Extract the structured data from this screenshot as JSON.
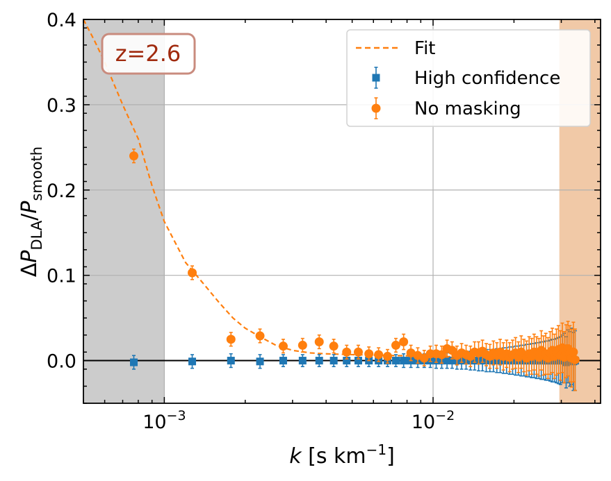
{
  "chart_data": {
    "type": "scatter",
    "xscale": "log",
    "xlim": [
      0.0005,
      0.042
    ],
    "ylim": [
      -0.05,
      0.4
    ],
    "xlabel": {
      "italic": "k",
      "rest": " [s km",
      "sup": "−1",
      "close": "]"
    },
    "ylabel": {
      "delta": "Δ",
      "p1": "P",
      "sub1": "DLA",
      "slash": "/",
      "p2": "P",
      "sub2": "smooth"
    },
    "y_ticks": [
      0.0,
      0.1,
      0.2,
      0.3,
      0.4
    ],
    "y_tick_labels": [
      "0.0",
      "0.1",
      "0.2",
      "0.3",
      "0.4"
    ],
    "x_major_ticks": [
      0.001,
      0.01
    ],
    "x_tick_labels": [
      {
        "base": "10",
        "exp": "−3"
      },
      {
        "base": "10",
        "exp": "−2"
      }
    ],
    "grid": true,
    "annotation": {
      "text": "z=2.6",
      "color": "#a02a0e",
      "border": "#c98b7e",
      "position": "top-left"
    },
    "shaded_regions": [
      {
        "x0": 0.0005,
        "x1": 0.001,
        "color": "#cccccc"
      },
      {
        "x0": 0.0295,
        "x1": 0.042,
        "color": "#f1c9a7"
      }
    ],
    "legend": {
      "position": "top-right",
      "entries": [
        {
          "label": "Fit",
          "kind": "line",
          "color": "#ff7f0e"
        },
        {
          "label": "High confidence",
          "kind": "square",
          "color": "#1f77b4"
        },
        {
          "label": "No masking",
          "kind": "circle",
          "color": "#ff7f0e"
        }
      ]
    },
    "series": [
      {
        "name": "Fit",
        "kind": "dashed-line",
        "color": "#ff7f0e",
        "x": [
          0.0005,
          0.00055,
          0.0006,
          0.0007,
          0.0008,
          0.0009,
          0.001,
          0.0012,
          0.0014,
          0.0016,
          0.0018,
          0.002,
          0.0023,
          0.0026,
          0.003,
          0.0035,
          0.004,
          0.005,
          0.007,
          0.01,
          0.015,
          0.02,
          0.03,
          0.035
        ],
        "values": [
          0.4,
          0.375,
          0.35,
          0.3,
          0.26,
          0.205,
          0.163,
          0.115,
          0.09,
          0.068,
          0.05,
          0.038,
          0.027,
          0.018,
          0.012,
          0.009,
          0.008,
          0.007,
          0.006,
          0.005,
          0.004,
          0.0035,
          0.0025,
          0.002
        ]
      },
      {
        "name": "High confidence",
        "kind": "square-errorbar",
        "color": "#1f77b4",
        "x": [
          0.00077,
          0.00127,
          0.00177,
          0.00227,
          0.00277,
          0.00327,
          0.00377,
          0.00427,
          0.00477,
          0.00527,
          0.00577,
          0.00627,
          0.00677,
          0.00727,
          0.00777,
          0.00827,
          0.00877,
          0.00927,
          0.00977,
          0.01027,
          0.01077,
          0.01127,
          0.01177,
          0.01227,
          0.01277,
          0.01327,
          0.01377,
          0.01427,
          0.01477,
          0.01527,
          0.01577,
          0.01627,
          0.01677,
          0.01727,
          0.01777,
          0.01827,
          0.01877,
          0.01927,
          0.01977,
          0.02027,
          0.02077,
          0.02127,
          0.02177,
          0.02227,
          0.02277,
          0.02327,
          0.02377,
          0.02427,
          0.02477,
          0.02527,
          0.02577,
          0.02627,
          0.02677,
          0.02727,
          0.02777,
          0.02827,
          0.02877,
          0.02927,
          0.02977,
          0.03027,
          0.03077,
          0.03127,
          0.03177,
          0.03227,
          0.03277,
          0.03327,
          0.03377
        ],
        "values": [
          -0.002,
          -0.001,
          0.0,
          -0.001,
          0.0,
          0.0,
          0.0,
          0.0,
          0.0,
          0.0,
          0.0,
          0.0,
          0.0,
          0.0,
          0.0,
          0.0,
          0.0,
          0.0,
          0.0,
          0.0,
          0.0,
          0.0,
          0.0,
          0.0,
          0.0,
          0.0,
          0.0,
          0.0,
          0.0,
          0.0,
          0.0,
          0.0,
          0.0,
          0.0,
          0.0,
          0.0,
          0.0,
          0.0,
          0.0,
          0.0,
          0.0,
          0.0,
          0.0,
          0.0,
          0.0,
          0.0,
          0.0,
          0.0,
          0.0,
          0.0,
          0.0,
          0.0,
          0.0,
          0.0,
          0.0,
          0.0,
          0.0,
          0.0,
          0.0,
          0.002,
          0.003,
          -0.002,
          0.005,
          0.002,
          0.005,
          -0.001,
          0.0
        ],
        "errors": [
          0.008,
          0.008,
          0.008,
          0.008,
          0.007,
          0.007,
          0.007,
          0.007,
          0.007,
          0.007,
          0.007,
          0.007,
          0.007,
          0.007,
          0.008,
          0.008,
          0.008,
          0.008,
          0.008,
          0.009,
          0.009,
          0.009,
          0.009,
          0.01,
          0.01,
          0.01,
          0.011,
          0.011,
          0.012,
          0.012,
          0.013,
          0.013,
          0.013,
          0.014,
          0.014,
          0.015,
          0.015,
          0.016,
          0.016,
          0.017,
          0.017,
          0.018,
          0.018,
          0.019,
          0.019,
          0.02,
          0.02,
          0.021,
          0.021,
          0.022,
          0.022,
          0.023,
          0.023,
          0.024,
          0.025,
          0.025,
          0.026,
          0.027,
          0.028,
          0.028,
          0.029,
          0.03,
          0.031,
          0.032,
          0.033,
          0.034,
          0.035
        ]
      },
      {
        "name": "No masking",
        "kind": "circle-errorbar",
        "color": "#ff7f0e",
        "x": [
          0.00077,
          0.00127,
          0.00177,
          0.00227,
          0.00277,
          0.00327,
          0.00377,
          0.00427,
          0.00477,
          0.00527,
          0.00577,
          0.00627,
          0.00677,
          0.00727,
          0.00777,
          0.00827,
          0.00877,
          0.00927,
          0.00977,
          0.01027,
          0.01077,
          0.01127,
          0.01177,
          0.01227,
          0.01277,
          0.01327,
          0.01377,
          0.01427,
          0.01477,
          0.01527,
          0.01577,
          0.01627,
          0.01677,
          0.01727,
          0.01777,
          0.01827,
          0.01877,
          0.01927,
          0.01977,
          0.02027,
          0.02077,
          0.02127,
          0.02177,
          0.02227,
          0.02277,
          0.02327,
          0.02377,
          0.02427,
          0.02477,
          0.02527,
          0.02577,
          0.02627,
          0.02677,
          0.02727,
          0.02777,
          0.02827,
          0.02877,
          0.02927,
          0.02977,
          0.03027,
          0.03077,
          0.03127,
          0.03177,
          0.03227,
          0.03277,
          0.03327,
          0.03377
        ],
        "values": [
          0.24,
          0.103,
          0.025,
          0.029,
          0.017,
          0.018,
          0.022,
          0.017,
          0.01,
          0.01,
          0.008,
          0.007,
          0.005,
          0.018,
          0.022,
          0.009,
          0.006,
          0.003,
          0.008,
          0.008,
          0.007,
          0.014,
          0.012,
          0.006,
          0.009,
          0.007,
          0.005,
          0.01,
          0.009,
          0.011,
          0.007,
          0.005,
          0.009,
          0.006,
          0.01,
          0.005,
          0.008,
          0.004,
          0.007,
          0.009,
          0.004,
          0.01,
          0.006,
          0.003,
          0.008,
          0.005,
          0.01,
          0.006,
          0.004,
          0.012,
          0.006,
          0.008,
          0.003,
          0.009,
          0.012,
          0.005,
          0.01,
          0.013,
          0.006,
          0.015,
          0.004,
          0.011,
          0.014,
          0.008,
          0.003,
          0.01,
          0.001
        ],
        "errors": [
          0.008,
          0.008,
          0.008,
          0.008,
          0.008,
          0.008,
          0.008,
          0.008,
          0.008,
          0.008,
          0.008,
          0.008,
          0.008,
          0.008,
          0.009,
          0.009,
          0.009,
          0.009,
          0.009,
          0.01,
          0.01,
          0.01,
          0.01,
          0.011,
          0.011,
          0.011,
          0.012,
          0.012,
          0.013,
          0.013,
          0.013,
          0.014,
          0.014,
          0.015,
          0.015,
          0.016,
          0.016,
          0.017,
          0.017,
          0.018,
          0.018,
          0.019,
          0.019,
          0.02,
          0.02,
          0.021,
          0.021,
          0.022,
          0.022,
          0.023,
          0.023,
          0.024,
          0.024,
          0.025,
          0.026,
          0.026,
          0.027,
          0.028,
          0.029,
          0.029,
          0.03,
          0.031,
          0.032,
          0.033,
          0.034,
          0.035,
          0.036
        ]
      }
    ]
  }
}
